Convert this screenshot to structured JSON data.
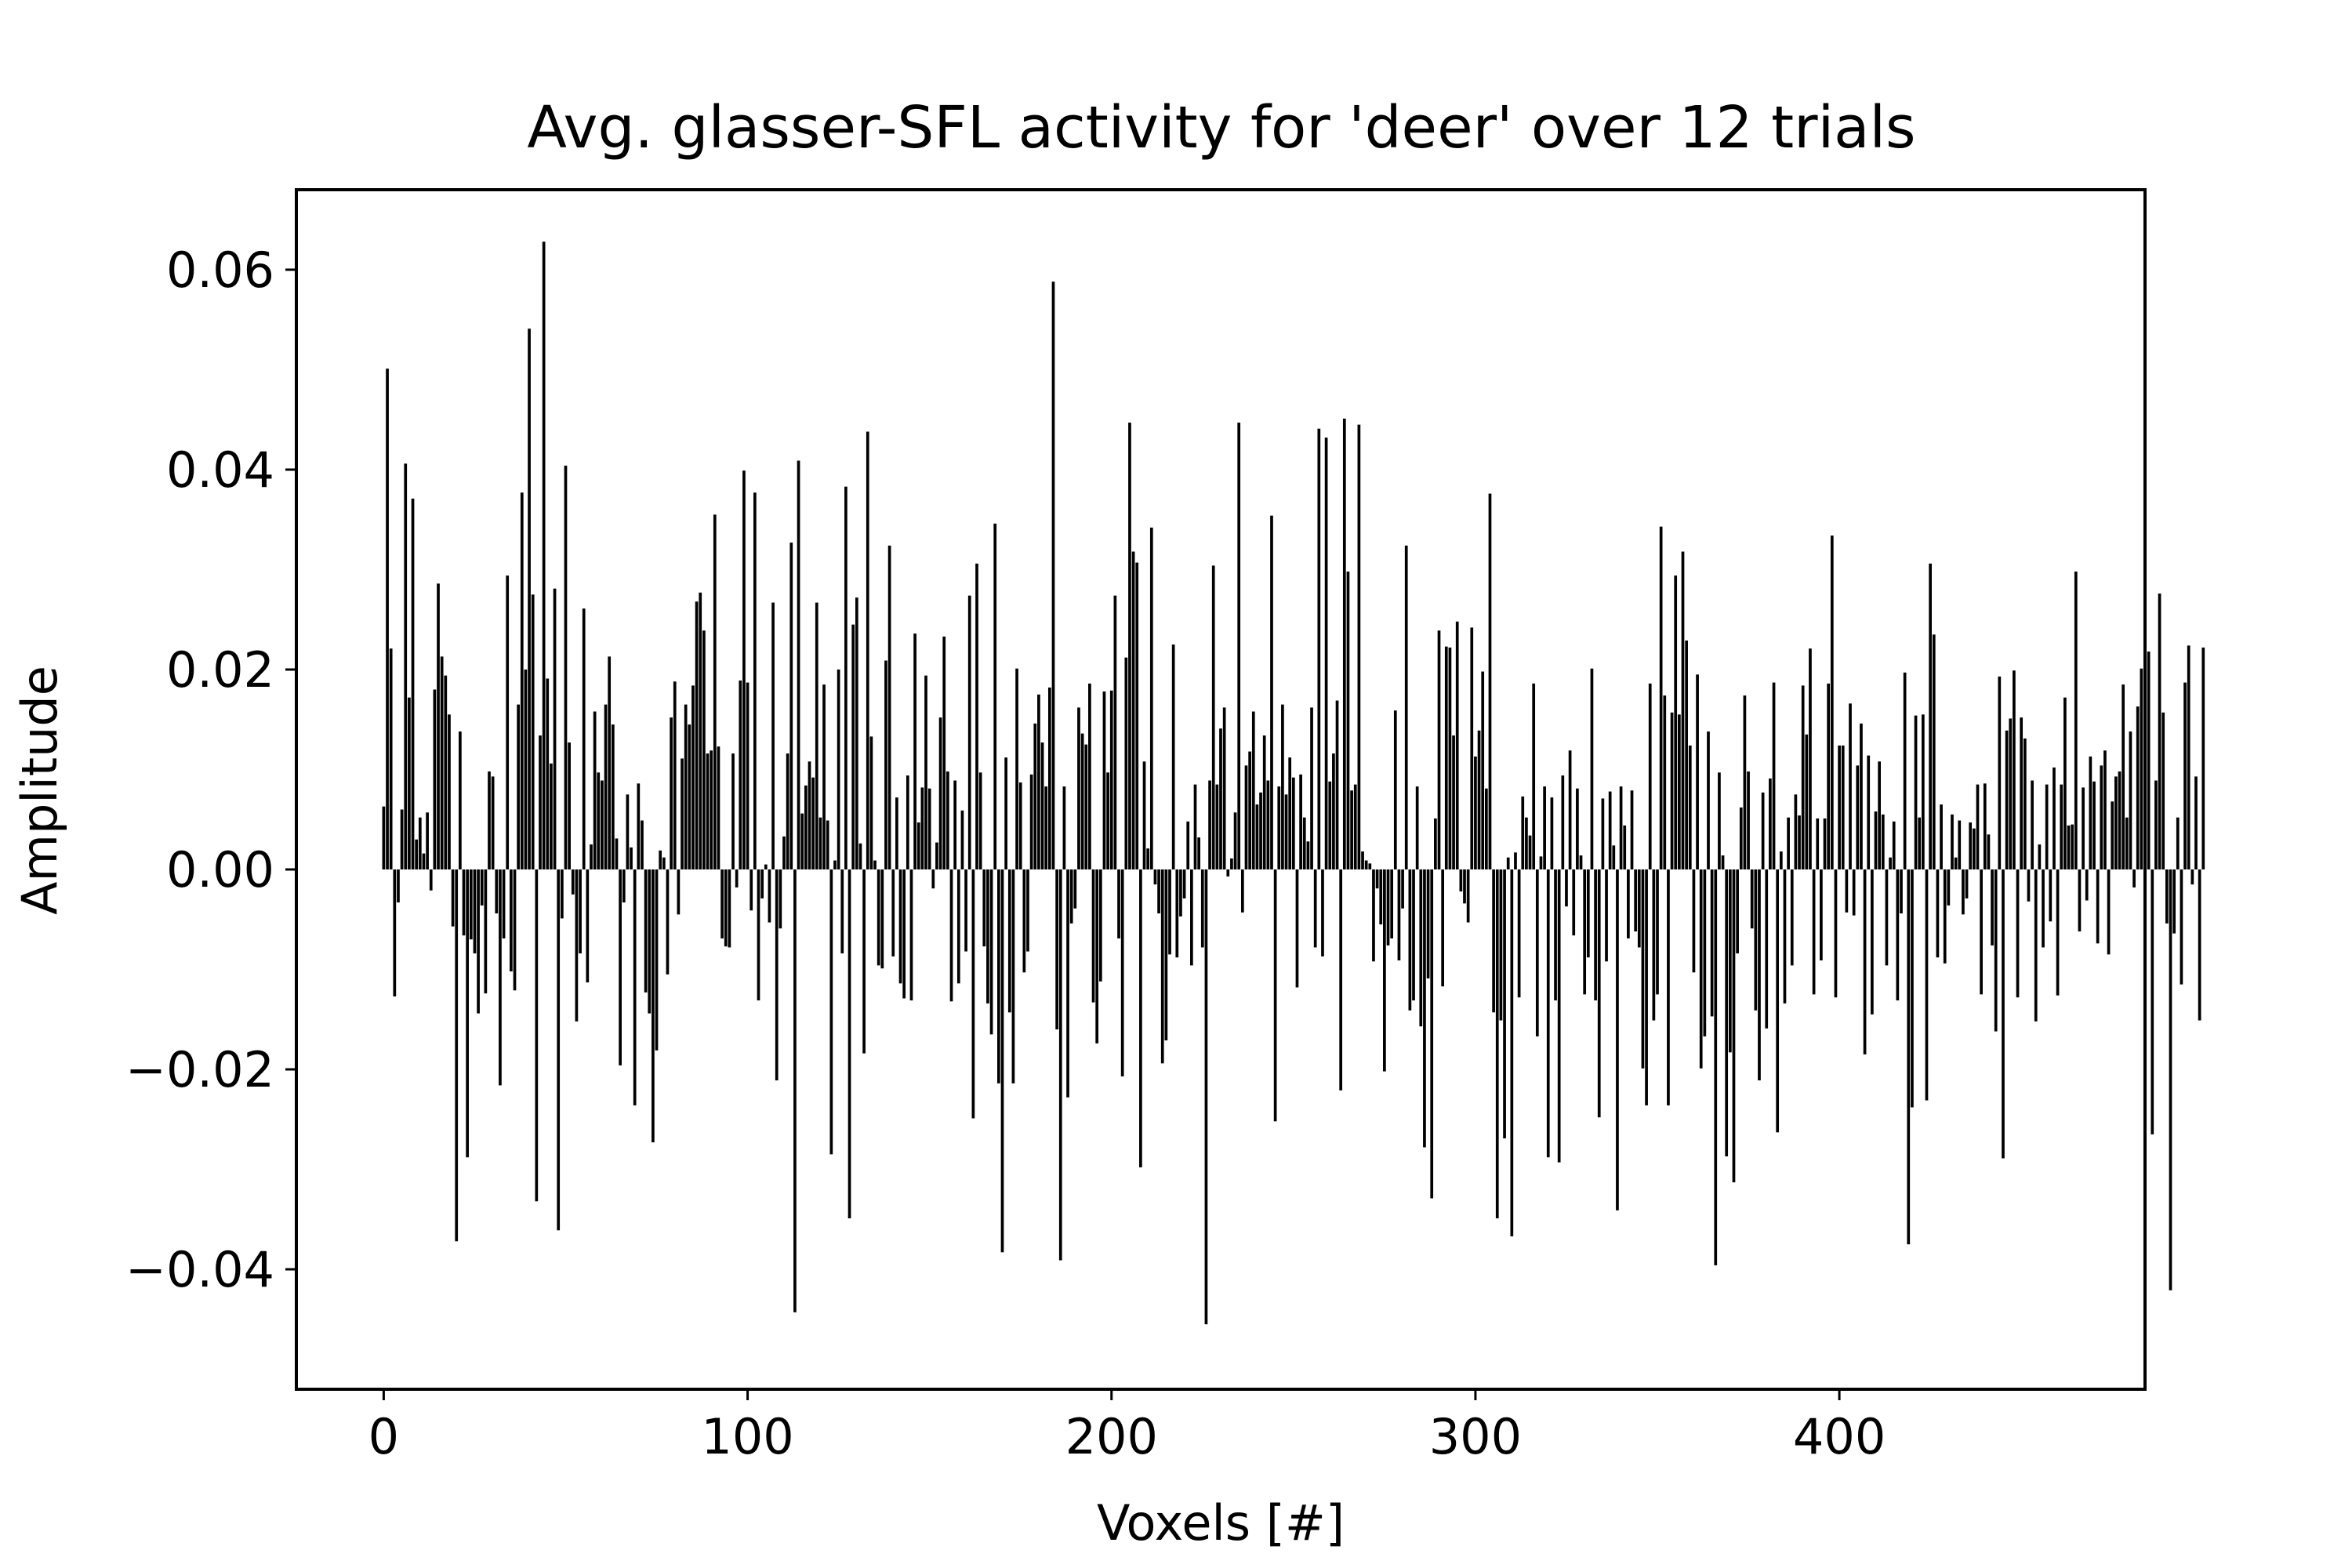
{
  "chart_data": {
    "type": "bar",
    "title": "Avg. glasser-SFL activity for 'deer' over 12 trials",
    "xlabel": "Voxels [#]",
    "ylabel": "Amplitude",
    "xlim": [
      -24,
      484
    ],
    "ylim": [
      -0.052,
      0.068
    ],
    "xticks": [
      0,
      100,
      200,
      300,
      400
    ],
    "xtick_labels": [
      "0",
      "100",
      "200",
      "300",
      "400"
    ],
    "yticks": [
      -0.04,
      -0.02,
      0.0,
      0.02,
      0.04,
      0.06
    ],
    "ytick_labels": [
      "−0.04",
      "−0.02",
      "0.00",
      "0.02",
      "0.04",
      "0.06"
    ],
    "grid": false,
    "bar_color": "#000000",
    "values": [
      0.0063,
      0.0501,
      0.0221,
      -0.0127,
      -0.0033,
      0.006,
      0.0406,
      0.0172,
      0.0371,
      0.003,
      0.0052,
      0.0016,
      0.0057,
      -0.0021,
      0.018,
      0.0286,
      0.0213,
      0.0194,
      0.0155,
      -0.0057,
      -0.0372,
      0.0138,
      -0.0066,
      -0.0288,
      -0.007,
      -0.0084,
      -0.0144,
      -0.0036,
      -0.0124,
      0.0098,
      0.0093,
      -0.0044,
      -0.0216,
      -0.0069,
      0.0294,
      -0.0102,
      -0.0121,
      0.0165,
      0.0377,
      0.02,
      0.0541,
      0.0275,
      -0.0332,
      0.0134,
      0.0628,
      0.0191,
      0.0106,
      0.0281,
      -0.0361,
      -0.0049,
      0.0404,
      0.0127,
      -0.0025,
      -0.0152,
      -0.0084,
      0.0261,
      -0.0113,
      0.0025,
      0.0158,
      0.0097,
      0.0089,
      0.0165,
      0.0213,
      0.0145,
      0.0031,
      -0.0196,
      -0.0033,
      0.0075,
      0.0022,
      -0.0236,
      0.0086,
      0.0049,
      -0.0123,
      -0.0144,
      -0.0273,
      -0.0181,
      0.0019,
      0.0012,
      -0.0105,
      0.0152,
      0.0188,
      -0.0045,
      0.0111,
      0.0165,
      0.0145,
      0.0184,
      0.0268,
      0.0277,
      0.0239,
      0.0116,
      0.0119,
      0.0355,
      0.0123,
      -0.0069,
      -0.0077,
      -0.0078,
      0.0116,
      -0.0018,
      0.0189,
      0.0399,
      0.0187,
      -0.0041,
      0.0377,
      -0.0131,
      -0.0029,
      0.0005,
      -0.0053,
      0.0267,
      -0.0211,
      -0.0059,
      0.0033,
      0.0116,
      0.0327,
      -0.0443,
      0.0409,
      0.0056,
      0.0084,
      0.0108,
      0.0092,
      0.0267,
      0.0052,
      0.0185,
      0.0049,
      -0.0285,
      0.0009,
      0.02,
      -0.0084,
      0.0383,
      -0.0349,
      0.0245,
      0.0272,
      0.0026,
      -0.0184,
      0.0438,
      0.0133,
      0.0009,
      -0.0096,
      -0.0099,
      0.0209,
      0.0324,
      -0.0087,
      0.0072,
      -0.0114,
      -0.0129,
      0.0094,
      -0.0131,
      0.0236,
      0.0047,
      0.0082,
      0.0194,
      0.0081,
      -0.0019,
      0.0027,
      0.0152,
      0.0233,
      0.0098,
      -0.0132,
      0.0089,
      -0.0114,
      0.0059,
      -0.0082,
      0.0274,
      -0.0249,
      0.0306,
      0.0097,
      -0.0077,
      -0.0134,
      -0.0165,
      0.0346,
      -0.0214,
      -0.0383,
      0.0112,
      -0.0143,
      -0.0214,
      0.0201,
      0.0087,
      -0.0103,
      -0.0082,
      0.0095,
      0.0146,
      0.0175,
      0.0127,
      0.0083,
      0.0182,
      0.0588,
      -0.016,
      -0.0391,
      0.0083,
      -0.0228,
      -0.0054,
      -0.0039,
      0.0162,
      0.0136,
      0.0125,
      0.0186,
      -0.0133,
      -0.0174,
      -0.0112,
      0.0178,
      0.0097,
      0.0179,
      0.0274,
      -0.0069,
      -0.0207,
      0.0212,
      0.0447,
      0.0318,
      0.0307,
      -0.0298,
      0.0108,
      0.0021,
      0.0342,
      -0.0015,
      -0.0044,
      -0.0194,
      -0.0171,
      -0.0085,
      0.0225,
      -0.0088,
      -0.0047,
      -0.0029,
      0.0048,
      -0.0096,
      0.0085,
      0.0032,
      -0.0078,
      -0.0455,
      0.0089,
      0.0304,
      0.0085,
      0.0141,
      0.0162,
      -0.0007,
      0.0011,
      0.0057,
      0.0447,
      -0.0043,
      0.0104,
      0.0118,
      0.0158,
      0.0065,
      0.0077,
      0.0134,
      0.0089,
      0.0354,
      -0.0252,
      0.0083,
      0.0165,
      0.0075,
      0.0112,
      0.0092,
      -0.0118,
      0.0095,
      0.0052,
      0.0028,
      0.0162,
      -0.0078,
      0.0441,
      -0.0087,
      0.0432,
      0.0088,
      0.0116,
      0.0169,
      -0.0221,
      0.0451,
      0.0298,
      0.0079,
      0.0085,
      0.0445,
      0.0018,
      0.0009,
      0.0006,
      -0.0092,
      -0.0019,
      -0.0055,
      -0.0202,
      -0.0076,
      -0.0069,
      0.0159,
      -0.0091,
      -0.0039,
      0.0324,
      -0.0141,
      -0.0131,
      0.0083,
      -0.0157,
      -0.0278,
      -0.0109,
      -0.0329,
      0.0051,
      0.0239,
      -0.0117,
      0.0223,
      0.0222,
      0.0134,
      0.0248,
      -0.0022,
      -0.0034,
      -0.0053,
      0.0242,
      0.0113,
      0.0139,
      0.0198,
      0.0081,
      0.0376,
      -0.0143,
      -0.0349,
      -0.0151,
      -0.0269,
      0.0012,
      -0.0367,
      0.0017,
      -0.0128,
      0.0073,
      0.0052,
      0.0034,
      0.0186,
      -0.0167,
      0.0013,
      0.0083,
      -0.0288,
      0.0072,
      -0.0131,
      -0.0293,
      0.0094,
      -0.0037,
      0.0119,
      -0.0066,
      0.0081,
      0.0014,
      -0.0125,
      -0.0088,
      0.0201,
      -0.0131,
      -0.0248,
      0.0071,
      -0.0092,
      0.0078,
      0.0024,
      -0.0341,
      0.0083,
      0.0044,
      -0.0069,
      0.0079,
      -0.0062,
      -0.0078,
      -0.0199,
      -0.0236,
      0.0186,
      -0.0151,
      -0.0125,
      0.0343,
      0.0174,
      -0.0236,
      0.0157,
      0.0294,
      0.0155,
      0.0318,
      0.0229,
      0.0124,
      -0.0103,
      0.0195,
      -0.0199,
      -0.0167,
      0.0138,
      -0.0147,
      -0.0396,
      0.0097,
      0.0014,
      -0.0287,
      -0.0183,
      -0.0313,
      -0.0084,
      0.0062,
      0.0174,
      0.0098,
      -0.0059,
      -0.0141,
      -0.0211,
      0.0077,
      -0.0159,
      0.0091,
      0.0187,
      -0.0263,
      0.0018,
      -0.0134,
      0.0052,
      -0.0096,
      0.0075,
      0.0054,
      0.0184,
      0.0135,
      0.0221,
      -0.0125,
      0.0051,
      -0.0091,
      0.0051,
      0.0186,
      0.0334,
      -0.0128,
      0.0124,
      0.0124,
      -0.0043,
      0.0166,
      -0.0046,
      0.0104,
      0.0146,
      -0.0185,
      0.0114,
      -0.0145,
      0.0058,
      0.0108,
      0.0055,
      -0.0096,
      0.0012,
      0.0048,
      -0.0131,
      -0.0044,
      0.0197,
      -0.0375,
      -0.0238,
      0.0154,
      0.0052,
      0.0155,
      -0.0231,
      0.0306,
      0.0235,
      -0.0088,
      0.0065,
      -0.0094,
      -0.0036,
      0.0055,
      0.0012,
      0.0049,
      -0.0045,
      -0.0029,
      0.0047,
      0.0041,
      0.0085,
      -0.0125,
      0.0086,
      0.0035,
      -0.0076,
      -0.0162,
      0.0193,
      -0.0289,
      0.0139,
      0.0151,
      0.0199,
      -0.0128,
      0.0152,
      0.0131,
      -0.0032,
      0.0089,
      -0.0152,
      0.0025,
      -0.0078,
      0.0085,
      -0.0052,
      0.0102,
      -0.0126,
      0.0085,
      0.0172,
      0.0044,
      0.0045,
      0.0298,
      -0.0062,
      0.0082,
      -0.0031,
      0.0113,
      0.0088,
      -0.0074,
      0.0104,
      0.0119,
      -0.0085,
      0.0068,
      0.0093,
      0.0098,
      0.0185,
      0.0052,
      0.0138,
      -0.0018,
      0.0163,
      0.0201,
      -0.0155,
      0.0218,
      -0.0265,
      0.0089,
      0.0276,
      0.0157,
      -0.0054,
      -0.0421,
      -0.0064,
      0.0052,
      -0.0115,
      0.0187,
      0.0224,
      -0.0015,
      0.0093,
      -0.0151,
      0.0222
    ]
  }
}
